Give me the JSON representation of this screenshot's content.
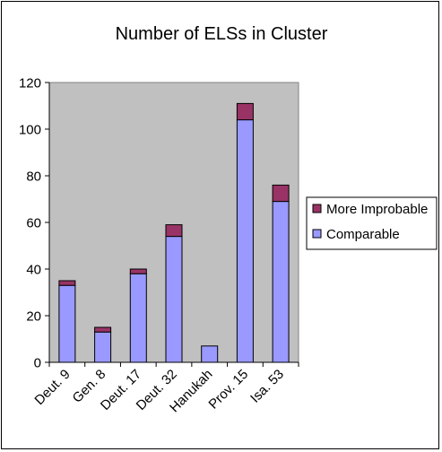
{
  "chart_data": {
    "type": "bar",
    "stacked": true,
    "title": "Number of ELSs in Cluster",
    "categories": [
      "Deut. 9",
      "Gen. 8",
      "Deut. 17",
      "Deut. 32",
      "Hanukah",
      "Prov. 15",
      "Isa. 53"
    ],
    "series": [
      {
        "name": "Comparable",
        "values": [
          33,
          13,
          38,
          54,
          7,
          104,
          69
        ],
        "color": "#9999ff"
      },
      {
        "name": "More Improbable",
        "values": [
          2,
          2,
          2,
          5,
          0,
          7,
          7
        ],
        "color": "#993366"
      }
    ],
    "legend_order": [
      "More Improbable",
      "Comparable"
    ],
    "legend_position": "right",
    "ylim": [
      0,
      120
    ],
    "yticks": [
      0,
      20,
      40,
      60,
      80,
      100,
      120
    ],
    "xlabel": "",
    "ylabel": "",
    "plot_background": "#c0c0c0",
    "grid": false
  }
}
